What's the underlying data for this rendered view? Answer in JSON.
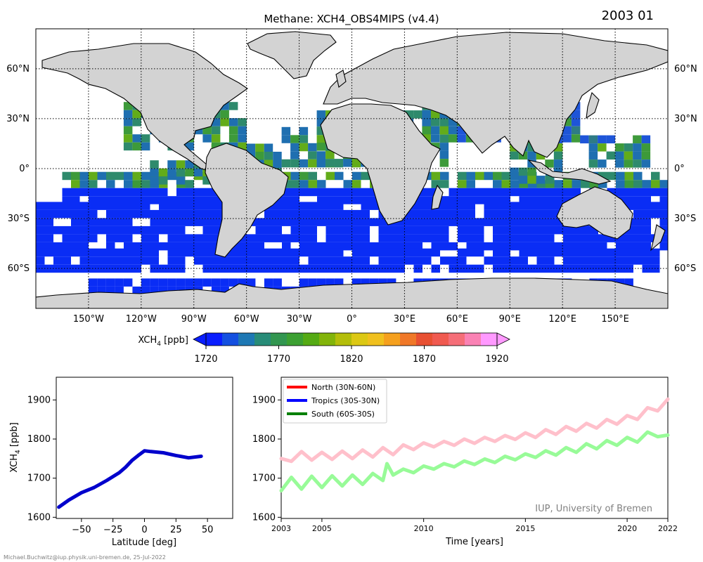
{
  "header": {
    "title": "Methane: XCH4_OBS4MIPS (v4.4)",
    "date_label": "2003 01"
  },
  "footer": {
    "credit_small": "Michael.Buchwitz@iup.physik.uni-bremen.de, 25-Jul-2022",
    "watermark": "IUP, University of Bremen"
  },
  "map": {
    "lon_ticks": [
      "150°W",
      "120°W",
      "90°W",
      "60°W",
      "30°W",
      "0°",
      "30°E",
      "60°E",
      "90°E",
      "120°E",
      "150°E"
    ],
    "lat_ticks_left": [
      "60°N",
      "30°N",
      "0°",
      "30°S",
      "60°S"
    ],
    "lat_ticks_right": [
      "60°N",
      "30°N",
      "0°",
      "30°S",
      "60°S"
    ],
    "land_color": "#d3d3d3",
    "grid": "dotted"
  },
  "colorbar": {
    "label_main": "XCH",
    "label_sub": "4",
    "label_unit": " [ppb]",
    "range": [
      1720,
      1920
    ],
    "ticks": [
      1720,
      1770,
      1820,
      1870,
      1920
    ],
    "extend": "both",
    "colormap": [
      "#0a1eff",
      "#1450e0",
      "#1e78b4",
      "#288c78",
      "#329650",
      "#3ca032",
      "#55aa14",
      "#82b40a",
      "#b4be0a",
      "#dcc814",
      "#f0c01e",
      "#f5a01e",
      "#f07828",
      "#e85032",
      "#f05a50",
      "#f56e78",
      "#fa82b4",
      "#ff99ff"
    ]
  },
  "chart_data": [
    {
      "type": "line",
      "panel": "latitudinal profile",
      "x": [
        -68,
        -60,
        -50,
        -40,
        -30,
        -20,
        -15,
        -10,
        -5,
        0,
        5,
        15,
        25,
        35,
        45
      ],
      "series": [
        {
          "values": [
            1626,
            1644,
            1663,
            1676,
            1694,
            1714,
            1728,
            1745,
            1758,
            1770,
            1768,
            1765,
            1758,
            1752,
            1756
          ],
          "color": "#0000cc"
        }
      ],
      "xlabel": "Latitude [deg]",
      "ylabel_main": "XCH",
      "ylabel_sub": "4",
      "ylabel_unit": " [ppb]",
      "xlim": [
        -70,
        70
      ],
      "ylim": [
        1597,
        1958
      ],
      "xticks": [
        -50,
        -25,
        0,
        25,
        50
      ],
      "xtick_labels": [
        "−50",
        "−25",
        "0",
        "25",
        "50"
      ],
      "yticks": [
        1600,
        1700,
        1800,
        1900
      ]
    },
    {
      "type": "line",
      "panel": "regional time series",
      "xlabel": "Time [years]",
      "xlim": [
        2003,
        2022
      ],
      "ylim": [
        1597,
        1958
      ],
      "xticks": [
        2003,
        2005,
        2010,
        2015,
        2020,
        2022
      ],
      "yticks": [
        1600,
        1700,
        1800,
        1900
      ],
      "legend_position": "top-left",
      "legend": [
        {
          "name": "North (30N-60N)",
          "color": "#ff0000"
        },
        {
          "name": "Tropics (30S-30N)",
          "color": "#0000ff"
        },
        {
          "name": "South (60S-30S)",
          "color": "#008000"
        }
      ],
      "series": [
        {
          "color": "#ffc0cb",
          "x": [
            2003.0,
            2003.5,
            2004.0,
            2004.5,
            2005.0,
            2005.5,
            2006.0,
            2006.5,
            2007.0,
            2007.5,
            2008.0,
            2008.5,
            2009.0,
            2009.5,
            2010.0,
            2010.5,
            2011.0,
            2011.5,
            2012.0,
            2012.5,
            2013.0,
            2013.5,
            2014.0,
            2014.5,
            2015.0,
            2015.5,
            2016.0,
            2016.5,
            2017.0,
            2017.5,
            2018.0,
            2018.5,
            2019.0,
            2019.5,
            2020.0,
            2020.5,
            2021.0,
            2021.5,
            2022.0
          ],
          "values": [
            1750,
            1743,
            1768,
            1746,
            1766,
            1748,
            1769,
            1750,
            1772,
            1754,
            1778,
            1760,
            1785,
            1773,
            1790,
            1780,
            1794,
            1784,
            1800,
            1789,
            1804,
            1794,
            1809,
            1799,
            1816,
            1804,
            1824,
            1812,
            1832,
            1820,
            1840,
            1828,
            1850,
            1838,
            1860,
            1850,
            1880,
            1872,
            1902
          ]
        },
        {
          "color": "#98fb98",
          "x": [
            2003.0,
            2003.5,
            2004.0,
            2004.5,
            2005.0,
            2005.5,
            2006.0,
            2006.5,
            2007.0,
            2007.5,
            2008.0,
            2008.2,
            2008.5,
            2009.0,
            2009.5,
            2010.0,
            2010.5,
            2011.0,
            2011.5,
            2012.0,
            2012.5,
            2013.0,
            2013.5,
            2014.0,
            2014.5,
            2015.0,
            2015.5,
            2016.0,
            2016.5,
            2017.0,
            2017.5,
            2018.0,
            2018.5,
            2019.0,
            2019.5,
            2020.0,
            2020.5,
            2021.0,
            2021.5,
            2022.0
          ],
          "values": [
            1668,
            1702,
            1672,
            1705,
            1676,
            1706,
            1680,
            1708,
            1684,
            1712,
            1694,
            1737,
            1708,
            1723,
            1714,
            1731,
            1723,
            1737,
            1729,
            1744,
            1735,
            1749,
            1740,
            1756,
            1747,
            1762,
            1753,
            1770,
            1759,
            1778,
            1766,
            1788,
            1775,
            1796,
            1784,
            1804,
            1792,
            1818,
            1806,
            1810
          ]
        }
      ]
    }
  ]
}
